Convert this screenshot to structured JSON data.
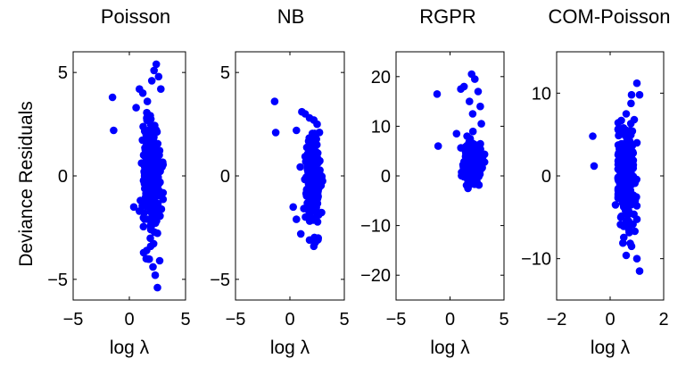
{
  "chart_data": [
    {
      "type": "scatter",
      "title": "Poisson",
      "xlabel": "log λ",
      "ylabel": "Deviance Residuals",
      "xlim": [
        -5,
        5
      ],
      "ylim": [
        -6,
        6
      ],
      "xticks": [
        -5,
        0,
        5
      ],
      "yticks": [
        -5,
        0,
        5
      ],
      "color": "#0000ff",
      "x_range": [
        -1.5,
        3.0
      ],
      "y_range": [
        -5.4,
        5.4
      ],
      "points": [
        {
          "x": -1.5,
          "y": 3.8
        },
        {
          "x": -1.4,
          "y": 2.2
        },
        {
          "x": 0.9,
          "y": 4.2
        },
        {
          "x": 1.2,
          "y": 4.0
        },
        {
          "x": 2.4,
          "y": 5.4
        },
        {
          "x": 2.2,
          "y": 5.1
        },
        {
          "x": 2.6,
          "y": 4.8
        },
        {
          "x": 2.0,
          "y": 4.6
        },
        {
          "x": 1.6,
          "y": 3.6
        },
        {
          "x": 2.8,
          "y": 4.2
        },
        {
          "x": 0.6,
          "y": 3.3
        },
        {
          "x": 0.4,
          "y": -1.5
        },
        {
          "x": 0.9,
          "y": -1.7
        },
        {
          "x": 1.5,
          "y": -4.0
        },
        {
          "x": 2.3,
          "y": -4.8
        },
        {
          "x": 2.5,
          "y": -5.4
        },
        {
          "x": 2.1,
          "y": -4.4
        },
        {
          "x": 2.7,
          "y": -4.1
        },
        {
          "x": 1.9,
          "y": -3.4
        }
      ],
      "cloud": {
        "x_center": 2.0,
        "x_spread": 0.7,
        "y_center": 0.0,
        "y_spread": 1.3,
        "n": 320
      }
    },
    {
      "type": "scatter",
      "title": "NB",
      "xlabel": "log λ",
      "ylabel": "",
      "xlim": [
        -5,
        5
      ],
      "ylim": [
        -6,
        6
      ],
      "xticks": [
        -5,
        0,
        5
      ],
      "yticks": [
        -5,
        0,
        5
      ],
      "color": "#0000ff",
      "x_range": [
        -1.4,
        3.0
      ],
      "y_range": [
        -3.5,
        3.6
      ],
      "points": [
        {
          "x": -1.4,
          "y": 3.6
        },
        {
          "x": -1.3,
          "y": 2.1
        },
        {
          "x": 1.1,
          "y": 3.1
        },
        {
          "x": 1.4,
          "y": 3.0
        },
        {
          "x": 1.8,
          "y": 2.8
        },
        {
          "x": 2.2,
          "y": 2.7
        },
        {
          "x": 2.5,
          "y": 2.5
        },
        {
          "x": 0.6,
          "y": 2.2
        },
        {
          "x": 0.3,
          "y": -1.5
        },
        {
          "x": 0.6,
          "y": -2.1
        },
        {
          "x": 1.0,
          "y": -2.8
        },
        {
          "x": 2.2,
          "y": -3.4
        },
        {
          "x": 1.8,
          "y": -3.1
        },
        {
          "x": 2.6,
          "y": -3.0
        }
      ],
      "cloud": {
        "x_center": 2.1,
        "x_spread": 0.6,
        "y_center": -0.2,
        "y_spread": 0.9,
        "n": 300
      }
    },
    {
      "type": "scatter",
      "title": "RGPR",
      "xlabel": "log λ",
      "ylabel": "",
      "xlim": [
        -5,
        5
      ],
      "ylim": [
        -25,
        25
      ],
      "xticks": [
        -5,
        0,
        5
      ],
      "yticks": [
        -20,
        -10,
        0,
        10,
        20
      ],
      "color": "#0000ff",
      "x_range": [
        -1.2,
        3.2
      ],
      "y_range": [
        -3.6,
        21
      ],
      "points": [
        {
          "x": -1.2,
          "y": 16.5
        },
        {
          "x": -1.1,
          "y": 6.0
        },
        {
          "x": 1.0,
          "y": 17.5
        },
        {
          "x": 1.3,
          "y": 18.0
        },
        {
          "x": 2.0,
          "y": 20.5
        },
        {
          "x": 2.3,
          "y": 19.5
        },
        {
          "x": 2.6,
          "y": 17.0
        },
        {
          "x": 1.8,
          "y": 15.0
        },
        {
          "x": 2.8,
          "y": 14.0
        },
        {
          "x": 2.1,
          "y": 12.5
        },
        {
          "x": 2.9,
          "y": 10.5
        },
        {
          "x": 0.6,
          "y": 8.5
        }
      ],
      "cloud": {
        "x_center": 2.1,
        "x_spread": 0.7,
        "y_center": 2.5,
        "y_spread": 2.2,
        "n": 320
      }
    },
    {
      "type": "scatter",
      "title": "COM-Poisson",
      "xlabel": "log λ",
      "ylabel": "",
      "xlim": [
        -2,
        2
      ],
      "ylim": [
        -15,
        15
      ],
      "xticks": [
        -2,
        0,
        2
      ],
      "yticks": [
        -10,
        0,
        10
      ],
      "color": "#0000ff",
      "x_range": [
        -0.7,
        1.2
      ],
      "y_range": [
        -11.5,
        11.2
      ],
      "points": [
        {
          "x": -0.65,
          "y": 4.8
        },
        {
          "x": -0.6,
          "y": 1.2
        },
        {
          "x": 0.6,
          "y": 7.5
        },
        {
          "x": 0.8,
          "y": 9.8
        },
        {
          "x": 1.0,
          "y": 11.2
        },
        {
          "x": 1.1,
          "y": 9.8
        },
        {
          "x": 0.9,
          "y": 6.8
        },
        {
          "x": 0.5,
          "y": 5.8
        },
        {
          "x": 1.0,
          "y": 4.0
        },
        {
          "x": 0.2,
          "y": -3.5
        },
        {
          "x": 0.4,
          "y": -5.0
        },
        {
          "x": 0.7,
          "y": -6.5
        },
        {
          "x": 0.8,
          "y": -8.5
        },
        {
          "x": 1.0,
          "y": -10.0
        },
        {
          "x": 1.1,
          "y": -11.5
        },
        {
          "x": 0.6,
          "y": -9.6
        }
      ],
      "cloud": {
        "x_center": 0.6,
        "x_spread": 0.35,
        "y_center": 0.0,
        "y_spread": 2.8,
        "n": 240
      }
    }
  ]
}
